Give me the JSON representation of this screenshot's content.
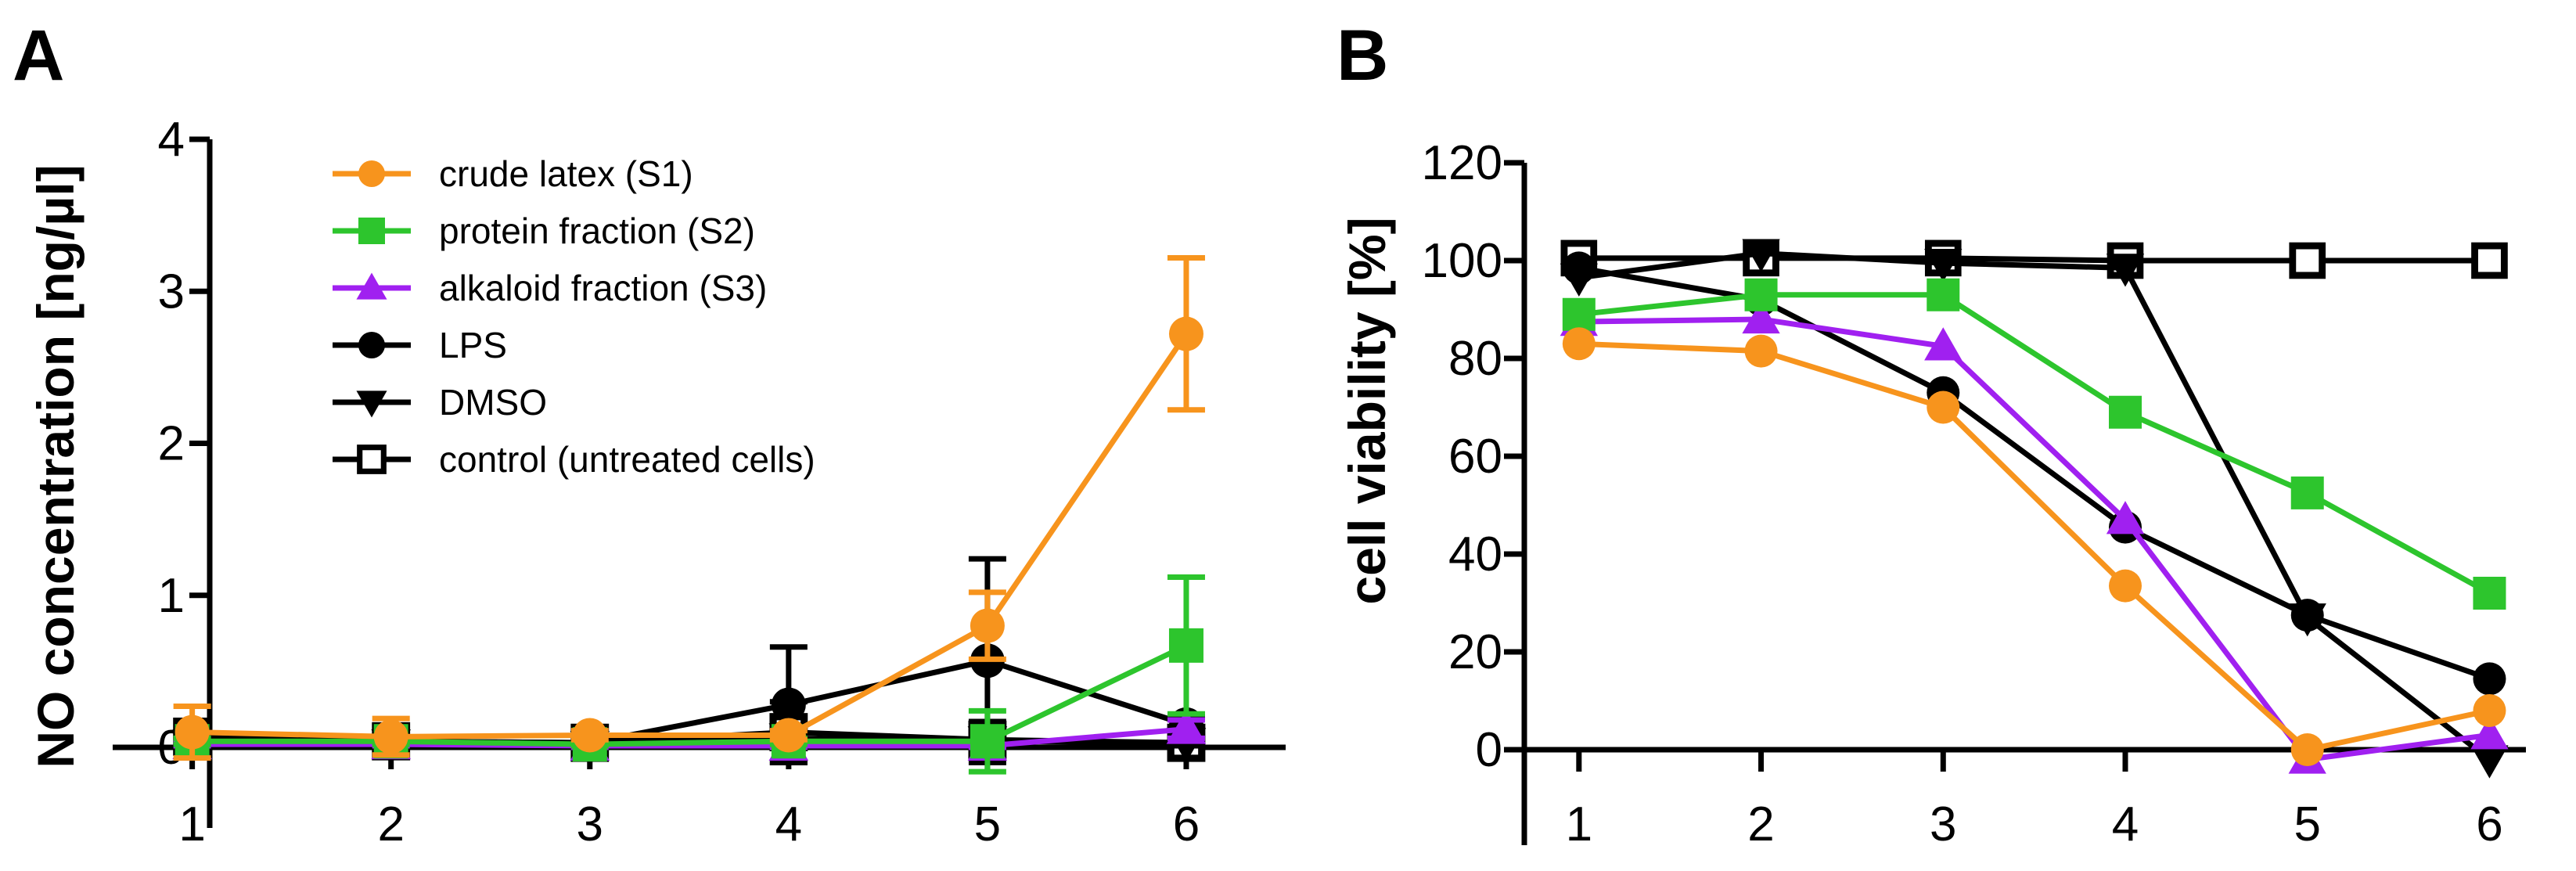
{
  "chart_data": [
    {
      "panel": "A",
      "type": "line",
      "title": "",
      "xlabel": "",
      "ylabel": "NO concentration [ng/µl]",
      "x": [
        1,
        2,
        3,
        4,
        5,
        6
      ],
      "xlim": [
        0.6,
        6.5
      ],
      "ylim": [
        -0.45,
        4
      ],
      "yticks": [
        0,
        1,
        2,
        3,
        4
      ],
      "grid": false,
      "legend": "top-left",
      "series": [
        {
          "name": "crude latex (S1)",
          "color": "#F7941D",
          "marker": "circle",
          "values": [
            0.1,
            0.07,
            0.08,
            0.08,
            0.8,
            2.72
          ],
          "err": [
            0.17,
            0.12,
            0.03,
            0.03,
            0.22,
            0.5
          ]
        },
        {
          "name": "protein fraction (S2)",
          "color": "#2DC52D",
          "marker": "square",
          "values": [
            0.04,
            0.04,
            0.02,
            0.04,
            0.04,
            0.67
          ],
          "err": [
            0.02,
            0.02,
            0.01,
            0.02,
            0.2,
            0.45
          ]
        },
        {
          "name": "alkaloid fraction (S3)",
          "color": "#A020F0",
          "marker": "triangle-up",
          "values": [
            0.02,
            0.02,
            0.01,
            0.01,
            0.01,
            0.12
          ],
          "err": [
            0.01,
            0.01,
            0.01,
            0.01,
            0.01,
            0.06
          ]
        },
        {
          "name": "LPS",
          "color": "#000000",
          "marker": "circle",
          "values": [
            0.04,
            0.04,
            0.03,
            0.28,
            0.57,
            0.15
          ],
          "err": [
            0.02,
            0.02,
            0.02,
            0.38,
            0.67,
            0.05
          ]
        },
        {
          "name": "DMSO",
          "color": "#000000",
          "marker": "triangle-down",
          "values": [
            0.02,
            0.02,
            0.01,
            0.06,
            0.04,
            0.03
          ],
          "err": [
            0.02,
            0.02,
            0.01,
            0.02,
            0.02,
            0.02
          ]
        },
        {
          "name": "control (untreated cells)",
          "color": "#000000",
          "marker": "open-square",
          "values": [
            0.07,
            0.04,
            0.03,
            0.1,
            0.05,
            0.03
          ],
          "err": [
            0.03,
            0.03,
            0.03,
            0.2,
            0.12,
            0.03
          ]
        }
      ]
    },
    {
      "panel": "B",
      "type": "line",
      "title": "",
      "xlabel": "",
      "ylabel": "cell viability [%]",
      "x": [
        1,
        2,
        3,
        4,
        5,
        6
      ],
      "xlim": [
        0.7,
        6.2
      ],
      "ylim": [
        -10,
        120
      ],
      "yticks": [
        0,
        20,
        40,
        60,
        80,
        100,
        120
      ],
      "grid": false,
      "legend": "none",
      "series": [
        {
          "name": "crude latex (S1)",
          "color": "#F7941D",
          "marker": "circle",
          "values": [
            83,
            81.5,
            70,
            33.5,
            0,
            8
          ]
        },
        {
          "name": "protein fraction (S2)",
          "color": "#2DC52D",
          "marker": "square",
          "values": [
            89,
            93,
            93,
            69,
            52.5,
            32
          ]
        },
        {
          "name": "alkaloid fraction (S3)",
          "color": "#A020F0",
          "marker": "triangle-up",
          "values": [
            87.5,
            88,
            82.5,
            47,
            -2,
            3
          ]
        },
        {
          "name": "LPS",
          "color": "#000000",
          "marker": "circle",
          "values": [
            98.5,
            92,
            73,
            45.5,
            27.5,
            14.5
          ]
        },
        {
          "name": "DMSO",
          "color": "#000000",
          "marker": "triangle-down",
          "values": [
            96.5,
            101.5,
            99.5,
            98.5,
            27,
            -2
          ]
        },
        {
          "name": "control (untreated cells)",
          "color": "#000000",
          "marker": "open-square",
          "values": [
            100.5,
            100.5,
            100.5,
            100,
            100,
            100
          ]
        }
      ]
    }
  ]
}
